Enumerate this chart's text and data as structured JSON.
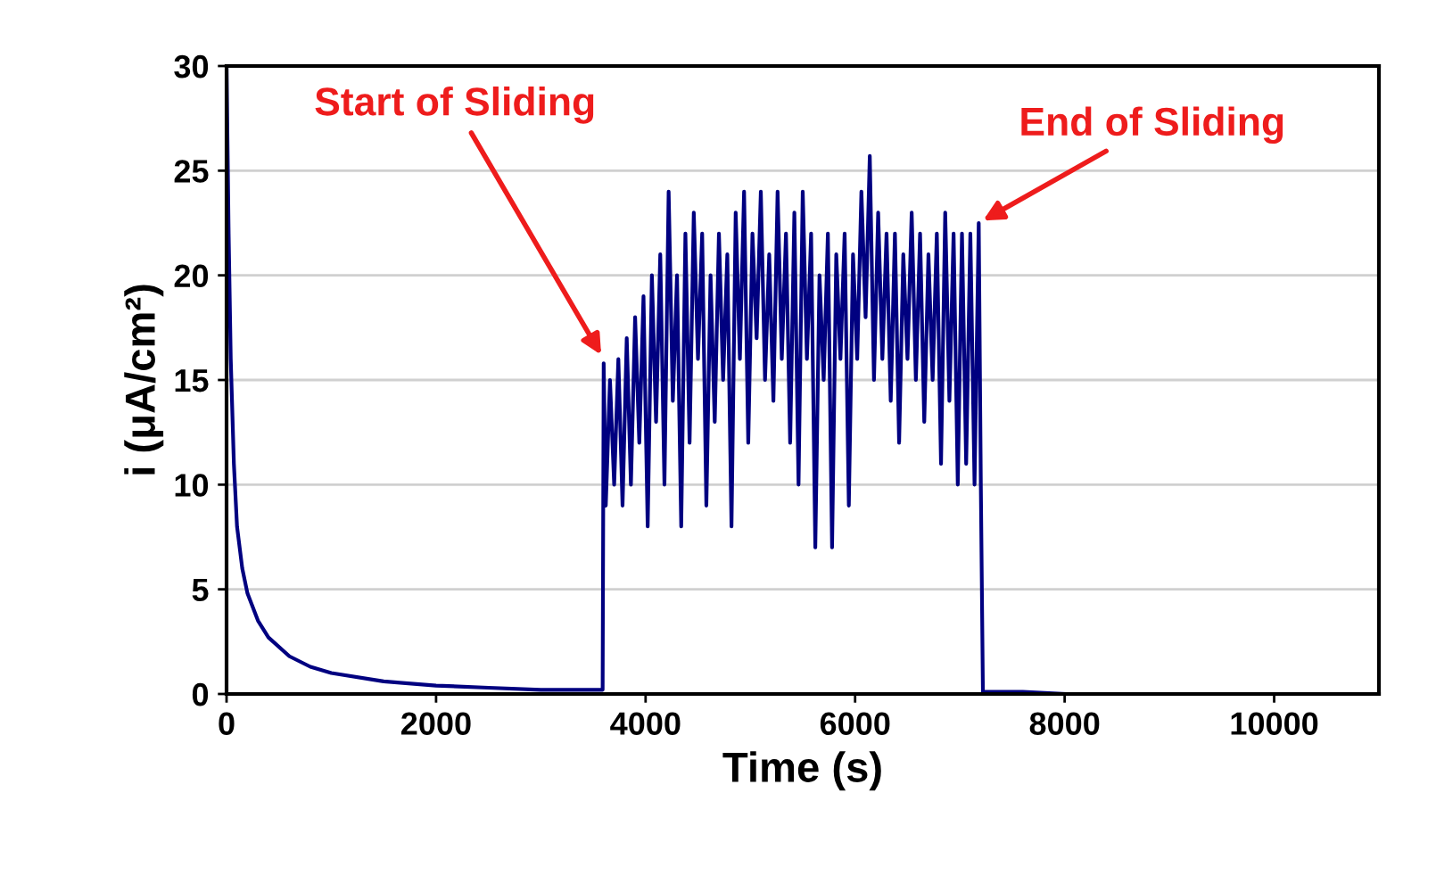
{
  "chart_data": {
    "type": "line",
    "xlabel": "Time (s)",
    "ylabel": "i (μA/cm²)",
    "xlim": [
      0,
      11000
    ],
    "ylim": [
      0,
      30
    ],
    "xticks": [
      0,
      2000,
      4000,
      6000,
      8000,
      10000
    ],
    "yticks": [
      0,
      5,
      10,
      15,
      20,
      25,
      30
    ],
    "grid": "y",
    "legend": false,
    "marker": "none",
    "line_style": "solid",
    "series": [
      {
        "color": "#000080",
        "x": [
          0,
          20,
          40,
          70,
          100,
          150,
          200,
          300,
          400,
          600,
          800,
          1000,
          1500,
          2000,
          2500,
          3000,
          3590,
          3600,
          3620,
          3660,
          3700,
          3740,
          3780,
          3820,
          3860,
          3900,
          3940,
          3980,
          4020,
          4060,
          4100,
          4140,
          4180,
          4220,
          4260,
          4300,
          4340,
          4380,
          4420,
          4460,
          4500,
          4540,
          4580,
          4620,
          4660,
          4700,
          4740,
          4780,
          4820,
          4860,
          4900,
          4940,
          4980,
          5020,
          5060,
          5100,
          5140,
          5180,
          5220,
          5260,
          5300,
          5340,
          5380,
          5420,
          5460,
          5500,
          5540,
          5580,
          5620,
          5660,
          5700,
          5740,
          5780,
          5820,
          5860,
          5900,
          5940,
          5980,
          6020,
          6060,
          6100,
          6140,
          6180,
          6220,
          6260,
          6300,
          6340,
          6380,
          6420,
          6460,
          6500,
          6540,
          6580,
          6620,
          6660,
          6700,
          6740,
          6780,
          6820,
          6860,
          6900,
          6940,
          6980,
          7020,
          7060,
          7100,
          7140,
          7180,
          7200,
          7220,
          7300,
          7600,
          8000
        ],
        "values": [
          30,
          22,
          16,
          11,
          8,
          6,
          4.8,
          3.5,
          2.7,
          1.8,
          1.3,
          1.0,
          0.6,
          0.4,
          0.3,
          0.2,
          0.2,
          15.8,
          9,
          15,
          10,
          16,
          9,
          17,
          10,
          18,
          12,
          19,
          8,
          20,
          13,
          21,
          10,
          24,
          14,
          20,
          8,
          22,
          12,
          23,
          16,
          22,
          9,
          20,
          13,
          22,
          15,
          21,
          8,
          23,
          16,
          24,
          12,
          22,
          17,
          24,
          15,
          21,
          14,
          24,
          16,
          22,
          12,
          23,
          10,
          24,
          16,
          22,
          7,
          20,
          15,
          22,
          7,
          21,
          16,
          22,
          9,
          21,
          16,
          24,
          18,
          25.7,
          15,
          23,
          16,
          22,
          14,
          22,
          12,
          21,
          16,
          23,
          15,
          22,
          13,
          21,
          15,
          22,
          11,
          23,
          14,
          22,
          10,
          22,
          11,
          22,
          10,
          22.5,
          10,
          0.1,
          0.1,
          0.1,
          0
        ]
      }
    ],
    "annotations": [
      {
        "text": "Start of Sliding",
        "x": 3600,
        "y": 16
      },
      {
        "text": "End of Sliding",
        "x": 7180,
        "y": 22.5
      }
    ]
  }
}
